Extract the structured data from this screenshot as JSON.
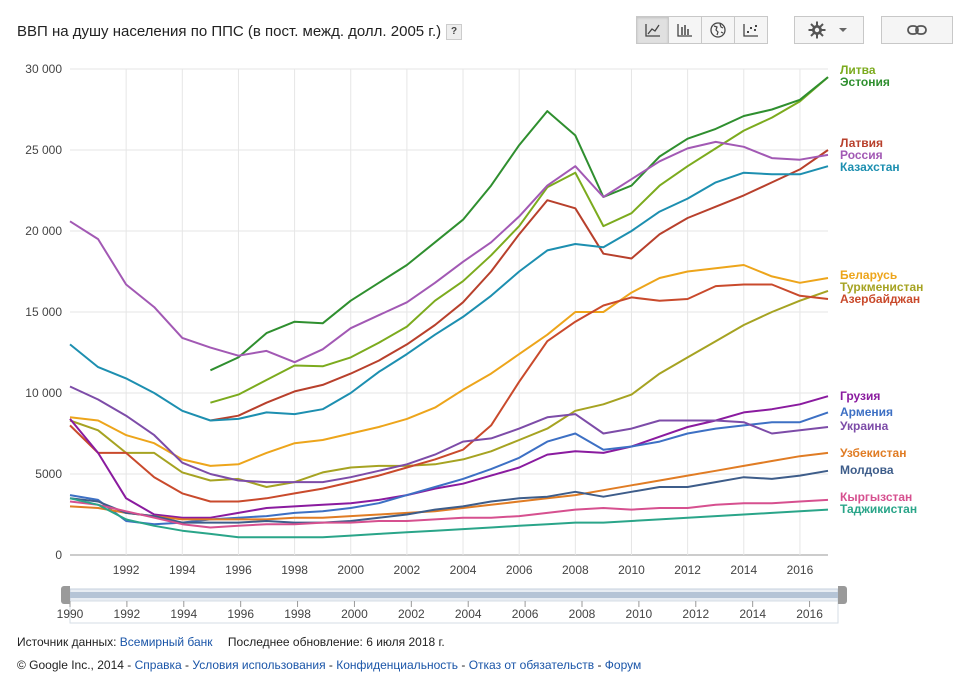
{
  "title": "ВВП на душу населения по ППС (в пост. межд. долл. 2005 г.)",
  "help_label": "?",
  "toolbar": {
    "buttons": [
      {
        "icon": "line-chart-icon",
        "active": true
      },
      {
        "icon": "bar-chart-icon",
        "active": false
      },
      {
        "icon": "globe-icon",
        "active": false
      },
      {
        "icon": "scatter-chart-icon",
        "active": false
      }
    ]
  },
  "footer": {
    "source_label": "Источник данных:",
    "source_link": "Всемирный банк",
    "updated": "Последнее обновление: 6 июля 2018 г.",
    "copyright": "© Google Inc., 2014",
    "links": [
      "Справка",
      "Условия использования",
      "Конфиденциальность",
      "Отказ от обязательств",
      "Форум"
    ]
  },
  "chart_data": {
    "type": "line",
    "title": "ВВП на душу населения по ППС (в пост. межд. долл. 2005 г.)",
    "xlim": [
      1990,
      2017
    ],
    "ylim": [
      0,
      30000
    ],
    "y_ticks": [
      0,
      5000,
      10000,
      15000,
      20000,
      25000,
      30000
    ],
    "y_tick_labels": [
      "0",
      "5000",
      "10 000",
      "15 000",
      "20 000",
      "25 000",
      "30 000"
    ],
    "x_ticks": [
      1992,
      1994,
      1996,
      1998,
      2000,
      2002,
      2004,
      2006,
      2008,
      2010,
      2012,
      2014,
      2016
    ],
    "grid": true,
    "legend": "right",
    "timeline": {
      "labels": [
        "1990",
        "1992",
        "1994",
        "1996",
        "1998",
        "2000",
        "2002",
        "2004",
        "2006",
        "2008",
        "2010",
        "2012",
        "2014",
        "2016"
      ],
      "range": [
        1990,
        2017
      ]
    },
    "series": [
      {
        "name": "Литва",
        "color": "#7cab1e",
        "x": [
          1995,
          1996,
          1997,
          1998,
          1999,
          2000,
          2001,
          2002,
          2003,
          2004,
          2005,
          2006,
          2007,
          2008,
          2009,
          2010,
          2011,
          2012,
          2013,
          2014,
          2015,
          2016,
          2017
        ],
        "y": [
          9400,
          9900,
          10800,
          11700,
          11650,
          12200,
          13100,
          14100,
          15700,
          16900,
          18500,
          20300,
          22700,
          23600,
          20300,
          21100,
          22800,
          24000,
          25100,
          26200,
          27000,
          28000,
          29500
        ]
      },
      {
        "name": "Эстония",
        "color": "#2f8f2f",
        "x": [
          1995,
          1996,
          1997,
          1998,
          1999,
          2000,
          2001,
          2002,
          2003,
          2004,
          2005,
          2006,
          2007,
          2008,
          2009,
          2010,
          2011,
          2012,
          2013,
          2014,
          2015,
          2016,
          2017
        ],
        "y": [
          11400,
          12200,
          13700,
          14400,
          14300,
          15700,
          16800,
          17900,
          19300,
          20700,
          22800,
          25300,
          27400,
          25900,
          22100,
          22800,
          24600,
          25700,
          26300,
          27100,
          27500,
          28100,
          29500
        ]
      },
      {
        "name": "Латвия",
        "color": "#b8402c",
        "x": [
          1995,
          1996,
          1997,
          1998,
          1999,
          2000,
          2001,
          2002,
          2003,
          2004,
          2005,
          2006,
          2007,
          2008,
          2009,
          2010,
          2011,
          2012,
          2013,
          2014,
          2015,
          2016,
          2017
        ],
        "y": [
          8300,
          8600,
          9400,
          10100,
          10500,
          11200,
          12000,
          13000,
          14200,
          15600,
          17500,
          19800,
          21900,
          21400,
          18600,
          18300,
          19800,
          20800,
          21500,
          22200,
          23000,
          23800,
          25000
        ]
      },
      {
        "name": "Россия",
        "color": "#a259b4",
        "x": [
          1990,
          1991,
          1992,
          1993,
          1994,
          1995,
          1996,
          1997,
          1998,
          1999,
          2000,
          2001,
          2002,
          2003,
          2004,
          2005,
          2006,
          2007,
          2008,
          2009,
          2010,
          2011,
          2012,
          2013,
          2014,
          2015,
          2016,
          2017
        ],
        "y": [
          20600,
          19500,
          16700,
          15300,
          13400,
          12800,
          12300,
          12600,
          11900,
          12700,
          14000,
          14800,
          15600,
          16800,
          18100,
          19300,
          20900,
          22800,
          24000,
          22100,
          23200,
          24300,
          25100,
          25500,
          25200,
          24500,
          24400,
          24700
        ]
      },
      {
        "name": "Казахстан",
        "color": "#1d8fb0",
        "x": [
          1990,
          1991,
          1992,
          1993,
          1994,
          1995,
          1996,
          1997,
          1998,
          1999,
          2000,
          2001,
          2002,
          2003,
          2004,
          2005,
          2006,
          2007,
          2008,
          2009,
          2010,
          2011,
          2012,
          2013,
          2014,
          2015,
          2016,
          2017
        ],
        "y": [
          13000,
          11600,
          10900,
          10000,
          8900,
          8300,
          8400,
          8800,
          8700,
          9000,
          10000,
          11300,
          12400,
          13600,
          14700,
          16000,
          17500,
          18800,
          19200,
          19000,
          20000,
          21200,
          22000,
          23000,
          23600,
          23500,
          23500,
          24000
        ]
      },
      {
        "name": "Беларусь",
        "color": "#eda51b",
        "x": [
          1990,
          1991,
          1992,
          1993,
          1994,
          1995,
          1996,
          1997,
          1998,
          1999,
          2000,
          2001,
          2002,
          2003,
          2004,
          2005,
          2006,
          2007,
          2008,
          2009,
          2010,
          2011,
          2012,
          2013,
          2014,
          2015,
          2016,
          2017
        ],
        "y": [
          8500,
          8300,
          7400,
          6900,
          5900,
          5500,
          5600,
          6300,
          6900,
          7100,
          7500,
          7900,
          8400,
          9100,
          10200,
          11200,
          12400,
          13600,
          15000,
          15000,
          16200,
          17100,
          17500,
          17700,
          17900,
          17200,
          16800,
          17100
        ]
      },
      {
        "name": "Туркменистан",
        "color": "#a6a322",
        "x": [
          1990,
          1991,
          1992,
          1993,
          1994,
          1995,
          1996,
          1997,
          1998,
          1999,
          2000,
          2001,
          2002,
          2003,
          2004,
          2005,
          2006,
          2007,
          2008,
          2009,
          2010,
          2011,
          2012,
          2013,
          2014,
          2015,
          2016,
          2017
        ],
        "y": [
          8300,
          7700,
          6300,
          6300,
          5100,
          4600,
          4700,
          4200,
          4500,
          5100,
          5400,
          5500,
          5500,
          5600,
          5900,
          6400,
          7100,
          7800,
          8900,
          9300,
          9900,
          11200,
          12200,
          13200,
          14200,
          15000,
          15700,
          16300
        ]
      },
      {
        "name": "Азербайджан",
        "color": "#c94a2c",
        "x": [
          1990,
          1991,
          1992,
          1993,
          1994,
          1995,
          1996,
          1997,
          1998,
          1999,
          2000,
          2001,
          2002,
          2003,
          2004,
          2005,
          2006,
          2007,
          2008,
          2009,
          2010,
          2011,
          2012,
          2013,
          2014,
          2015,
          2016,
          2017
        ],
        "y": [
          8000,
          6300,
          6300,
          4800,
          3800,
          3300,
          3300,
          3500,
          3800,
          4100,
          4500,
          4900,
          5400,
          5900,
          6500,
          8000,
          10700,
          13200,
          14400,
          15400,
          15900,
          15700,
          15800,
          16600,
          16700,
          16700,
          16000,
          15800
        ]
      },
      {
        "name": "Грузия",
        "color": "#8a1b9f",
        "x": [
          1990,
          1991,
          1992,
          1993,
          1994,
          1995,
          1996,
          1997,
          1998,
          1999,
          2000,
          2001,
          2002,
          2003,
          2004,
          2005,
          2006,
          2007,
          2008,
          2009,
          2010,
          2011,
          2012,
          2013,
          2014,
          2015,
          2016,
          2017
        ],
        "y": [
          8400,
          6300,
          3500,
          2500,
          2300,
          2300,
          2600,
          2900,
          3000,
          3100,
          3200,
          3400,
          3700,
          4100,
          4400,
          4900,
          5400,
          6200,
          6400,
          6300,
          6700,
          7300,
          7900,
          8300,
          8800,
          9000,
          9300,
          9800
        ]
      },
      {
        "name": "Армения",
        "color": "#3d70c4",
        "x": [
          1990,
          1991,
          1992,
          1993,
          1994,
          1995,
          1996,
          1997,
          1998,
          1999,
          2000,
          2001,
          2002,
          2003,
          2004,
          2005,
          2006,
          2007,
          2008,
          2009,
          2010,
          2011,
          2012,
          2013,
          2014,
          2015,
          2016,
          2017
        ],
        "y": [
          3700,
          3400,
          2100,
          1900,
          2000,
          2200,
          2300,
          2400,
          2600,
          2700,
          2900,
          3200,
          3700,
          4200,
          4700,
          5300,
          6000,
          7000,
          7500,
          6500,
          6700,
          7000,
          7500,
          7800,
          8000,
          8200,
          8200,
          8800
        ]
      },
      {
        "name": "Украина",
        "color": "#7d4ca8",
        "x": [
          1990,
          1991,
          1992,
          1993,
          1994,
          1995,
          1996,
          1997,
          1998,
          1999,
          2000,
          2001,
          2002,
          2003,
          2004,
          2005,
          2006,
          2007,
          2008,
          2009,
          2010,
          2011,
          2012,
          2013,
          2014,
          2015,
          2016,
          2017
        ],
        "y": [
          10400,
          9600,
          8600,
          7400,
          5700,
          5000,
          4600,
          4500,
          4500,
          4500,
          4800,
          5200,
          5600,
          6200,
          7000,
          7200,
          7800,
          8500,
          8700,
          7500,
          7800,
          8300,
          8300,
          8300,
          8200,
          7500,
          7700,
          7900
        ]
      },
      {
        "name": "Узбекистан",
        "color": "#e07c24",
        "x": [
          1990,
          1991,
          1992,
          1993,
          1994,
          1995,
          1996,
          1997,
          1998,
          1999,
          2000,
          2001,
          2002,
          2003,
          2004,
          2005,
          2006,
          2007,
          2008,
          2009,
          2010,
          2011,
          2012,
          2013,
          2014,
          2015,
          2016,
          2017
        ],
        "y": [
          3000,
          2900,
          2600,
          2400,
          2200,
          2200,
          2200,
          2200,
          2300,
          2300,
          2400,
          2500,
          2600,
          2700,
          2900,
          3100,
          3300,
          3500,
          3700,
          4000,
          4300,
          4600,
          4900,
          5200,
          5500,
          5800,
          6100,
          6300
        ]
      },
      {
        "name": "Молдова",
        "color": "#3e5d8a",
        "x": [
          1990,
          1991,
          1992,
          1993,
          1994,
          1995,
          1996,
          1997,
          1998,
          1999,
          2000,
          2001,
          2002,
          2003,
          2004,
          2005,
          2006,
          2007,
          2008,
          2009,
          2010,
          2011,
          2012,
          2013,
          2014,
          2015,
          2016,
          2017
        ],
        "y": [
          3500,
          3300,
          2600,
          2400,
          2000,
          2000,
          2000,
          2100,
          2000,
          2000,
          2100,
          2300,
          2500,
          2800,
          3000,
          3300,
          3500,
          3600,
          3900,
          3600,
          3900,
          4200,
          4200,
          4500,
          4800,
          4700,
          4900,
          5200
        ]
      },
      {
        "name": "Кыргызстан",
        "color": "#d6508f",
        "x": [
          1990,
          1991,
          1992,
          1993,
          1994,
          1995,
          1996,
          1997,
          1998,
          1999,
          2000,
          2001,
          2002,
          2003,
          2004,
          2005,
          2006,
          2007,
          2008,
          2009,
          2010,
          2011,
          2012,
          2013,
          2014,
          2015,
          2016,
          2017
        ],
        "y": [
          3300,
          3100,
          2700,
          2300,
          1900,
          1700,
          1800,
          1900,
          1900,
          2000,
          2000,
          2100,
          2100,
          2200,
          2300,
          2300,
          2400,
          2600,
          2800,
          2900,
          2800,
          2900,
          2900,
          3100,
          3200,
          3200,
          3300,
          3400
        ]
      },
      {
        "name": "Таджикистан",
        "color": "#2aa589",
        "x": [
          1990,
          1991,
          1992,
          1993,
          1994,
          1995,
          1996,
          1997,
          1998,
          1999,
          2000,
          2001,
          2002,
          2003,
          2004,
          2005,
          2006,
          2007,
          2008,
          2009,
          2010,
          2011,
          2012,
          2013,
          2014,
          2015,
          2016,
          2017
        ],
        "y": [
          3500,
          3100,
          2200,
          1800,
          1500,
          1300,
          1100,
          1100,
          1100,
          1100,
          1200,
          1300,
          1400,
          1500,
          1600,
          1700,
          1800,
          1900,
          2000,
          2000,
          2100,
          2200,
          2300,
          2400,
          2500,
          2600,
          2700,
          2800
        ]
      }
    ],
    "legend_labels": [
      {
        "name": "Литва",
        "color": "#7cab1e",
        "y": 29400
      },
      {
        "name": "Эстония",
        "color": "#2f8f2f",
        "y": 29400
      },
      {
        "name": "Латвия",
        "color": "#b8402c",
        "y": 25400
      },
      {
        "name": "Россия",
        "color": "#a259b4",
        "y": 24600
      },
      {
        "name": "Казахстан",
        "color": "#1d8fb0",
        "y": 23800
      },
      {
        "name": "Беларусь",
        "color": "#eda51b",
        "y": 17500
      },
      {
        "name": "Туркменистан",
        "color": "#a6a322",
        "y": 16700
      },
      {
        "name": "Азербайджан",
        "color": "#c94a2c",
        "y": 15900
      },
      {
        "name": "Грузия",
        "color": "#8a1b9f",
        "y": 9800
      },
      {
        "name": "Армения",
        "color": "#3d70c4",
        "y": 8900
      },
      {
        "name": "Украина",
        "color": "#7d4ca8",
        "y": 8000
      },
      {
        "name": "Узбекистан",
        "color": "#e07c24",
        "y": 6300
      },
      {
        "name": "Молдова",
        "color": "#3e5d8a",
        "y": 5200
      },
      {
        "name": "Кыргызстан",
        "color": "#d6508f",
        "y": 3500
      },
      {
        "name": "Таджикистан",
        "color": "#2aa589",
        "y": 2700
      }
    ]
  }
}
